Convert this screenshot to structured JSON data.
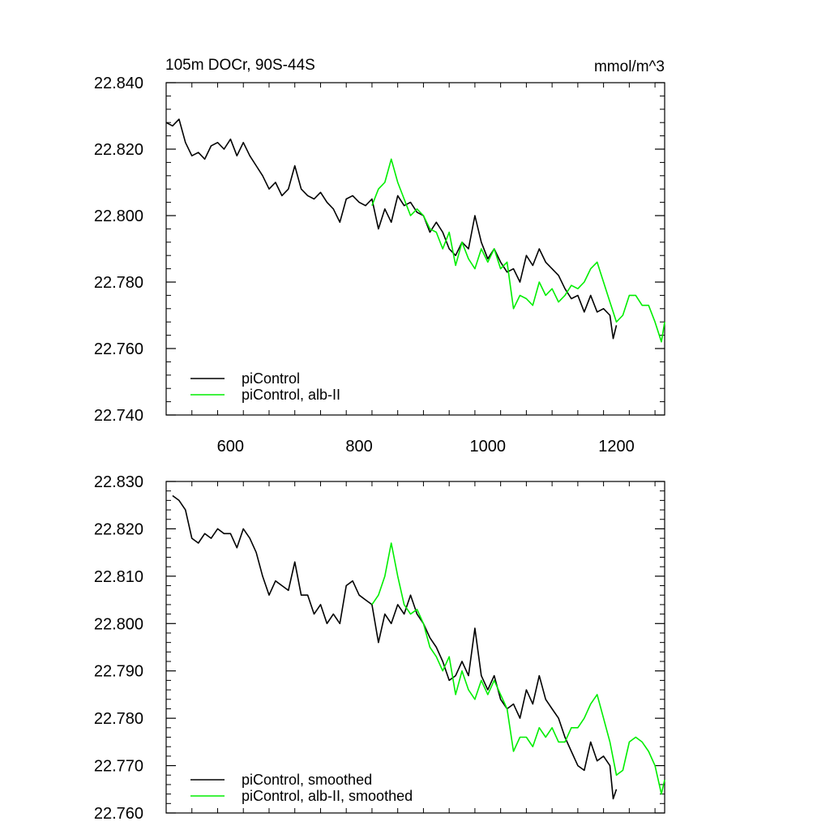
{
  "figure": {
    "title_left": "105m DOCr, 90S-44S",
    "title_right": "mmol/m^3"
  },
  "colors": {
    "piControl": "#000000",
    "albII": "#00ee00"
  },
  "chart_data": [
    {
      "type": "line",
      "title": "105m DOCr, 90S-44S",
      "units": "mmol/m^3",
      "xlim": [
        500,
        1275
      ],
      "ylim": [
        22.74,
        22.84
      ],
      "xticks": [
        600,
        800,
        1000,
        1200
      ],
      "xtick_labels": [
        "600",
        "800",
        "1000",
        "1200"
      ],
      "yticks": [
        22.74,
        22.76,
        22.78,
        22.8,
        22.82,
        22.84
      ],
      "ytick_labels": [
        "22.740",
        "22.760",
        "22.780",
        "22.800",
        "22.820",
        "22.840"
      ],
      "legend_position": "bottom-left",
      "series": [
        {
          "name": "piControl",
          "color": "#000000",
          "x": [
            500,
            510,
            520,
            530,
            540,
            550,
            560,
            570,
            580,
            590,
            600,
            610,
            620,
            630,
            640,
            650,
            660,
            670,
            680,
            690,
            700,
            710,
            720,
            730,
            740,
            750,
            760,
            770,
            780,
            790,
            800,
            810,
            820,
            830,
            840,
            850,
            860,
            870,
            880,
            890,
            900,
            910,
            920,
            930,
            940,
            950,
            960,
            970,
            980,
            990,
            1000,
            1010,
            1020,
            1030,
            1040,
            1050,
            1060,
            1070,
            1080,
            1090,
            1100,
            1110,
            1120,
            1130,
            1140,
            1150,
            1160,
            1170,
            1180,
            1190,
            1195,
            1200
          ],
          "y": [
            22.828,
            22.827,
            22.829,
            22.822,
            22.818,
            22.819,
            22.817,
            22.821,
            22.822,
            22.82,
            22.823,
            22.818,
            22.822,
            22.818,
            22.815,
            22.812,
            22.808,
            22.81,
            22.806,
            22.808,
            22.815,
            22.808,
            22.806,
            22.805,
            22.807,
            22.804,
            22.802,
            22.798,
            22.805,
            22.806,
            22.804,
            22.803,
            22.805,
            22.796,
            22.802,
            22.798,
            22.806,
            22.803,
            22.804,
            22.801,
            22.8,
            22.795,
            22.798,
            22.795,
            22.79,
            22.788,
            22.792,
            22.79,
            22.8,
            22.792,
            22.787,
            22.79,
            22.786,
            22.783,
            22.784,
            22.78,
            22.788,
            22.785,
            22.79,
            22.786,
            22.784,
            22.782,
            22.778,
            22.775,
            22.776,
            22.771,
            22.776,
            22.771,
            22.772,
            22.77,
            22.763,
            22.767
          ]
        },
        {
          "name": "piControl, alb-II",
          "color": "#00ee00",
          "x": [
            820,
            830,
            840,
            850,
            860,
            870,
            880,
            890,
            900,
            910,
            920,
            930,
            940,
            950,
            960,
            970,
            980,
            990,
            1000,
            1010,
            1020,
            1030,
            1040,
            1050,
            1060,
            1070,
            1080,
            1090,
            1100,
            1110,
            1120,
            1130,
            1140,
            1150,
            1160,
            1170,
            1180,
            1190,
            1200,
            1210,
            1220,
            1230,
            1240,
            1250,
            1260,
            1270,
            1275
          ],
          "y": [
            22.803,
            22.808,
            22.81,
            22.817,
            22.81,
            22.805,
            22.8,
            22.802,
            22.8,
            22.796,
            22.795,
            22.79,
            22.795,
            22.785,
            22.792,
            22.787,
            22.784,
            22.79,
            22.786,
            22.79,
            22.784,
            22.786,
            22.772,
            22.776,
            22.775,
            22.773,
            22.78,
            22.776,
            22.778,
            22.774,
            22.776,
            22.779,
            22.778,
            22.78,
            22.784,
            22.786,
            22.78,
            22.774,
            22.768,
            22.77,
            22.776,
            22.776,
            22.773,
            22.773,
            22.768,
            22.762,
            22.768
          ]
        }
      ]
    },
    {
      "type": "line",
      "xlim": [
        500,
        1275
      ],
      "ylim": [
        22.76,
        22.83
      ],
      "xticks": [
        600,
        800,
        1000,
        1200
      ],
      "yticks": [
        22.76,
        22.77,
        22.78,
        22.79,
        22.8,
        22.81,
        22.82,
        22.83
      ],
      "ytick_labels": [
        "22.760",
        "22.770",
        "22.780",
        "22.790",
        "22.800",
        "22.810",
        "22.820",
        "22.830"
      ],
      "legend_position": "bottom-left",
      "series": [
        {
          "name": "piControl, smoothed",
          "color": "#000000",
          "x": [
            510,
            520,
            530,
            540,
            550,
            560,
            570,
            580,
            590,
            600,
            610,
            620,
            630,
            640,
            650,
            660,
            670,
            680,
            690,
            700,
            710,
            720,
            730,
            740,
            750,
            760,
            770,
            780,
            790,
            800,
            810,
            820,
            830,
            840,
            850,
            860,
            870,
            880,
            890,
            900,
            910,
            920,
            930,
            940,
            950,
            960,
            970,
            980,
            990,
            1000,
            1010,
            1020,
            1030,
            1040,
            1050,
            1060,
            1070,
            1080,
            1090,
            1100,
            1110,
            1120,
            1130,
            1140,
            1150,
            1160,
            1170,
            1180,
            1190,
            1195,
            1200
          ],
          "y": [
            22.827,
            22.826,
            22.824,
            22.818,
            22.817,
            22.819,
            22.818,
            22.82,
            22.819,
            22.819,
            22.816,
            22.82,
            22.818,
            22.815,
            22.81,
            22.806,
            22.809,
            22.808,
            22.807,
            22.813,
            22.806,
            22.806,
            22.802,
            22.804,
            22.8,
            22.802,
            22.8,
            22.808,
            22.809,
            22.806,
            22.805,
            22.804,
            22.796,
            22.802,
            22.8,
            22.804,
            22.802,
            22.806,
            22.802,
            22.8,
            22.797,
            22.795,
            22.792,
            22.788,
            22.789,
            22.792,
            22.789,
            22.799,
            22.789,
            22.786,
            22.789,
            22.784,
            22.782,
            22.783,
            22.78,
            22.786,
            22.783,
            22.789,
            22.784,
            22.782,
            22.78,
            22.776,
            22.773,
            22.77,
            22.769,
            22.775,
            22.771,
            22.772,
            22.77,
            22.763,
            22.765
          ]
        },
        {
          "name": "piControl, alb-II, smoothed",
          "color": "#00ee00",
          "x": [
            820,
            830,
            840,
            850,
            860,
            870,
            880,
            890,
            900,
            910,
            920,
            930,
            940,
            950,
            960,
            970,
            980,
            990,
            1000,
            1010,
            1020,
            1030,
            1040,
            1050,
            1060,
            1070,
            1080,
            1090,
            1100,
            1110,
            1120,
            1130,
            1140,
            1150,
            1160,
            1170,
            1180,
            1190,
            1200,
            1210,
            1220,
            1230,
            1240,
            1250,
            1260,
            1270,
            1275
          ],
          "y": [
            22.804,
            22.806,
            22.81,
            22.817,
            22.81,
            22.804,
            22.802,
            22.803,
            22.8,
            22.795,
            22.793,
            22.79,
            22.793,
            22.785,
            22.79,
            22.786,
            22.784,
            22.788,
            22.785,
            22.788,
            22.785,
            22.782,
            22.773,
            22.776,
            22.776,
            22.774,
            22.778,
            22.776,
            22.778,
            22.775,
            22.775,
            22.778,
            22.778,
            22.78,
            22.783,
            22.785,
            22.78,
            22.775,
            22.768,
            22.769,
            22.775,
            22.776,
            22.775,
            22.773,
            22.77,
            22.764,
            22.767
          ]
        }
      ]
    }
  ]
}
